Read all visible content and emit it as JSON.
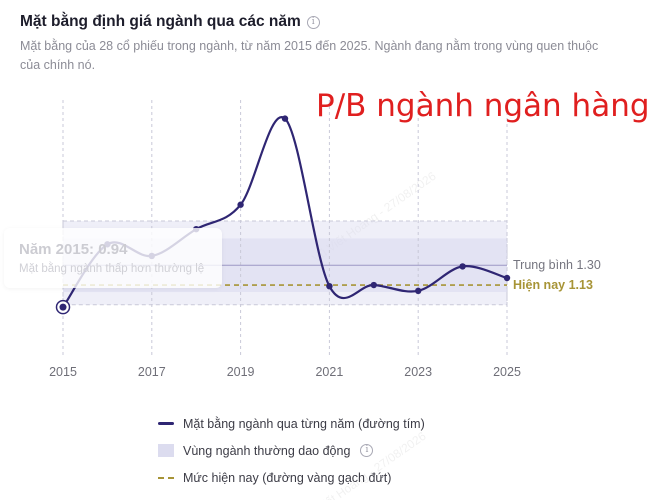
{
  "header": {
    "title": "Mặt bằng định giá ngành qua các năm",
    "info_icon": "info-icon",
    "subtitle": "Mặt bằng của 28 cổ phiếu trong ngành, từ năm 2015 đến 2025. Ngành đang nằm trong vùng quen thuộc của chính nó."
  },
  "overlay_title": "P/B ngành ngân hàng",
  "tooltip": {
    "title": "Năm 2015: 0.94",
    "text": "Mặt bằng ngành thấp hơn thường lệ"
  },
  "watermark": "Vũ Viết Hoàng - 27/08/2026",
  "chart_data": {
    "type": "line",
    "x": [
      2015,
      2016,
      2017,
      2018,
      2019,
      2020,
      2021,
      2022,
      2023,
      2024,
      2025
    ],
    "series": [
      {
        "name": "Mặt bằng ngành qua từng năm (đường tím)",
        "values": [
          0.94,
          1.48,
          1.38,
          1.61,
          1.82,
          2.56,
          1.12,
          1.13,
          1.08,
          1.29,
          1.19
        ]
      }
    ],
    "x_tick_labels": [
      "2015",
      "2017",
      "2019",
      "2021",
      "2023",
      "2025"
    ],
    "ylim": [
      0.52,
      2.72
    ],
    "band_outer": [
      0.96,
      1.68
    ],
    "band_inner": [
      1.07,
      1.53
    ],
    "average": {
      "label": "Trung bình 1.30",
      "value": 1.3
    },
    "current": {
      "label": "Hiện nay 1.13",
      "value": 1.13
    },
    "highlight_year": 2015,
    "colors": {
      "line": "#2f2673",
      "band": "#dcdcef",
      "average": "#9c98c4",
      "current": "#a79436",
      "grid": "#c9c9d8"
    }
  },
  "legend": {
    "items": [
      {
        "label": "Mặt bằng ngành qua từng năm (đường tím)"
      },
      {
        "label": "Vùng ngành thường dao động"
      },
      {
        "label": "Mức hiện nay (đường vàng gạch đứt)"
      }
    ]
  }
}
